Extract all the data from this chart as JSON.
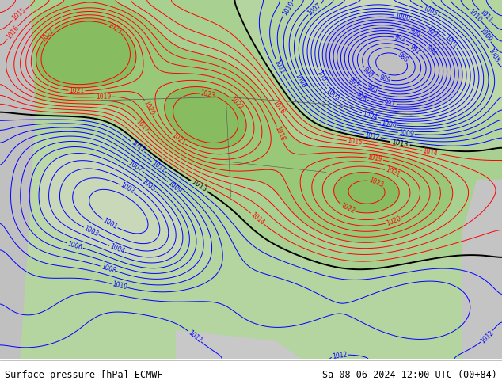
{
  "title_left": "Surface pressure [hPa] ECMWF",
  "title_right": "Sa 08-06-2024 12:00 UTC (00+84)",
  "bg_color": "#c8c8c8",
  "land_color": "#b8dca0",
  "figsize": [
    6.34,
    4.9
  ],
  "dpi": 100,
  "footer_fontsize": 8.5,
  "footer_bg": "#ffffff"
}
